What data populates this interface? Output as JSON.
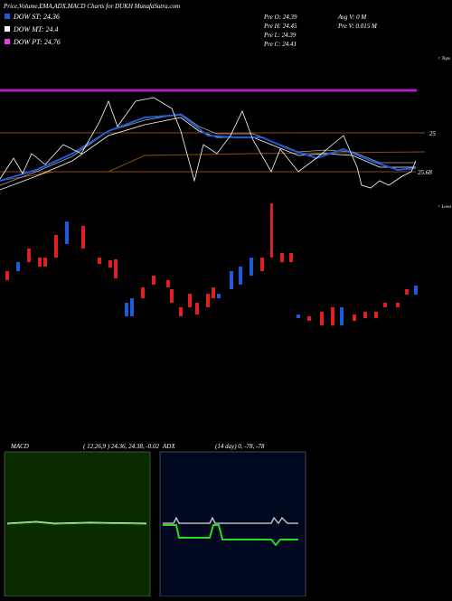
{
  "header": {
    "title": "Price,Volume,EMA,ADX,MACD Charts for DUKH MunafaSutra.com"
  },
  "legend": [
    {
      "label": "DOW ST: 24.36",
      "color": "#1e5bd6"
    },
    {
      "label": "DOW MT: 24.4",
      "color": "#ffffff"
    },
    {
      "label": "DOW PT: 24.76",
      "color": "#e040e0"
    }
  ],
  "info": {
    "left": [
      "Pre   O: 24.39",
      "Pre   H: 24.45",
      "Pre   L: 24.39",
      "Pre   C: 24.41"
    ],
    "right": [
      "Avg V: 0  M",
      "Pre   V: 0.015 M"
    ]
  },
  "price_labels": {
    "tops": "< Tops",
    "lows": "< Lows",
    "level_25": "25",
    "level_2568": "25.68"
  },
  "macd": {
    "name": "MACD",
    "params": "( 12,26,9 ) 24.36, 24.38, -0.02"
  },
  "adx": {
    "name": "ADX",
    "params": "(14  day) 0, -78, -78"
  }
}
